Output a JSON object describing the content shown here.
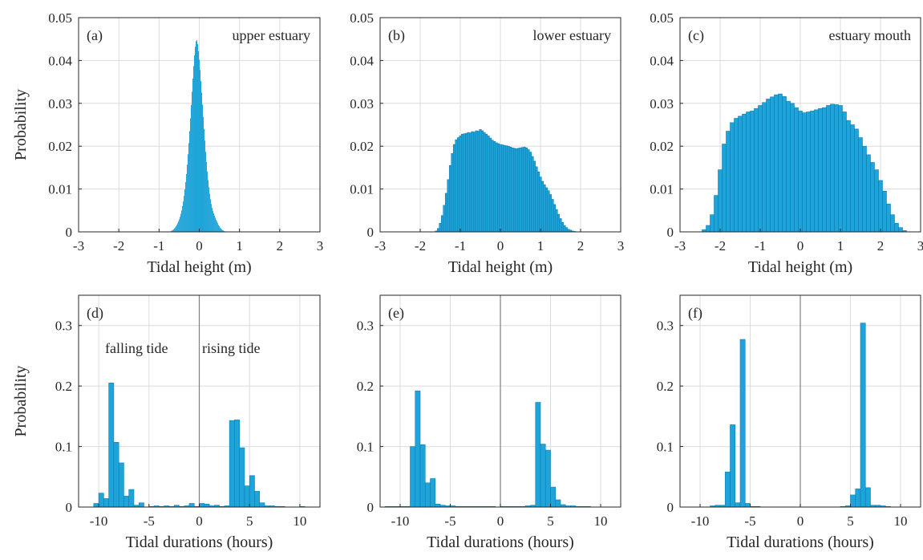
{
  "colors": {
    "bar": "#1ea4d8",
    "edge": "#0d7fb5",
    "grid": "#dcdcdc",
    "axis": "#262626",
    "zero_line": "#808080"
  },
  "chart_data": [
    {
      "type": "bar",
      "panel": "(a)",
      "annotation": "upper estuary",
      "xlabel": "Tidal height (m)",
      "ylabel": "Probability",
      "xlim": [
        -3,
        3
      ],
      "ylim": [
        0,
        0.05
      ],
      "xticks": [
        "-3",
        "-2",
        "-1",
        "0",
        "1",
        "2",
        "3"
      ],
      "yticks": [
        "0",
        "0.01",
        "0.02",
        "0.03",
        "0.04",
        "0.05"
      ],
      "grid": true,
      "binwidth": 0.02,
      "x": [
        -0.7,
        -0.68,
        -0.66,
        -0.64,
        -0.62,
        -0.6,
        -0.58,
        -0.56,
        -0.54,
        -0.52,
        -0.5,
        -0.48,
        -0.46,
        -0.44,
        -0.42,
        -0.4,
        -0.38,
        -0.36,
        -0.34,
        -0.32,
        -0.3,
        -0.28,
        -0.26,
        -0.24,
        -0.22,
        -0.2,
        -0.18,
        -0.16,
        -0.14,
        -0.12,
        -0.1,
        -0.08,
        -0.06,
        -0.04,
        -0.02,
        0,
        0.02,
        0.04,
        0.06,
        0.08,
        0.1,
        0.12,
        0.14,
        0.16,
        0.18,
        0.2,
        0.22,
        0.24,
        0.26,
        0.28,
        0.3,
        0.32,
        0.34,
        0.36,
        0.38,
        0.4,
        0.42,
        0.44,
        0.46,
        0.48,
        0.5,
        0.52,
        0.54,
        0.56,
        0.58,
        0.6,
        0.62,
        0.64,
        0.66,
        0.68,
        0.7
      ],
      "values": [
        0.0002,
        0.0003,
        0.0004,
        0.0006,
        0.0008,
        0.001,
        0.0013,
        0.0016,
        0.002,
        0.0024,
        0.0029,
        0.0035,
        0.0042,
        0.005,
        0.006,
        0.0071,
        0.0084,
        0.0099,
        0.0116,
        0.0135,
        0.0157,
        0.0181,
        0.0207,
        0.0235,
        0.0265,
        0.0296,
        0.0327,
        0.0358,
        0.0387,
        0.0412,
        0.0432,
        0.0445,
        0.0447,
        0.0438,
        0.0422,
        0.0402,
        0.0378,
        0.0352,
        0.0325,
        0.0297,
        0.0268,
        0.024,
        0.0213,
        0.0187,
        0.0163,
        0.0141,
        0.0121,
        0.0104,
        0.0089,
        0.0076,
        0.0065,
        0.0056,
        0.0049,
        0.0043,
        0.0038,
        0.0033,
        0.0028,
        0.0024,
        0.002,
        0.0016,
        0.0013,
        0.001,
        0.0008,
        0.0006,
        0.0004,
        0.0003,
        0.0002,
        0.0001,
        0.0001,
        0.0001,
        0
      ]
    },
    {
      "type": "bar",
      "panel": "(b)",
      "annotation": "lower estuary",
      "xlabel": "Tidal height (m)",
      "ylabel": "",
      "xlim": [
        -3,
        3
      ],
      "ylim": [
        0,
        0.05
      ],
      "xticks": [
        "-3",
        "-2",
        "-1",
        "0",
        "1",
        "2",
        "3"
      ],
      "yticks": [
        "0",
        "0.01",
        "0.02",
        "0.03",
        "0.04",
        "0.05"
      ],
      "grid": true,
      "binwidth": 0.05,
      "x": [
        -1.6,
        -1.55,
        -1.5,
        -1.45,
        -1.4,
        -1.35,
        -1.3,
        -1.25,
        -1.2,
        -1.15,
        -1.1,
        -1.05,
        -1,
        -0.95,
        -0.9,
        -0.85,
        -0.8,
        -0.75,
        -0.7,
        -0.65,
        -0.6,
        -0.55,
        -0.5,
        -0.45,
        -0.4,
        -0.35,
        -0.3,
        -0.25,
        -0.2,
        -0.15,
        -0.1,
        -0.05,
        0,
        0.05,
        0.1,
        0.15,
        0.2,
        0.25,
        0.3,
        0.35,
        0.4,
        0.45,
        0.5,
        0.55,
        0.6,
        0.65,
        0.7,
        0.75,
        0.8,
        0.85,
        0.9,
        0.95,
        1,
        1.05,
        1.1,
        1.15,
        1.2,
        1.25,
        1.3,
        1.35,
        1.4,
        1.45,
        1.5,
        1.55,
        1.6,
        1.65,
        1.7,
        1.75,
        1.8,
        1.85,
        1.9
      ],
      "values": [
        0.0002,
        0.0008,
        0.002,
        0.0038,
        0.0062,
        0.009,
        0.0122,
        0.0155,
        0.0183,
        0.0204,
        0.0215,
        0.022,
        0.0224,
        0.0228,
        0.0229,
        0.023,
        0.0232,
        0.0231,
        0.0234,
        0.0233,
        0.0236,
        0.0235,
        0.0239,
        0.0236,
        0.0232,
        0.0228,
        0.0224,
        0.0219,
        0.0214,
        0.0211,
        0.0208,
        0.0206,
        0.0204,
        0.0203,
        0.0202,
        0.0201,
        0.02,
        0.0198,
        0.0196,
        0.0195,
        0.0194,
        0.0195,
        0.0196,
        0.0197,
        0.0198,
        0.0196,
        0.0192,
        0.0186,
        0.0176,
        0.0165,
        0.0152,
        0.014,
        0.0128,
        0.0118,
        0.011,
        0.0103,
        0.0096,
        0.0087,
        0.0076,
        0.0064,
        0.0052,
        0.0041,
        0.0031,
        0.0022,
        0.0015,
        0.001,
        0.0006,
        0.0004,
        0.0002,
        0.0001,
        0
      ]
    },
    {
      "type": "bar",
      "panel": "(c)",
      "annotation": "estuary mouth",
      "xlabel": "Tidal height (m)",
      "ylabel": "",
      "xlim": [
        -3,
        3
      ],
      "ylim": [
        0,
        0.05
      ],
      "xticks": [
        "-3",
        "-2",
        "-1",
        "0",
        "1",
        "2",
        "3"
      ],
      "yticks": [
        "0",
        "0.01",
        "0.02",
        "0.03",
        "0.04",
        "0.05"
      ],
      "grid": true,
      "binwidth": 0.1,
      "x": [
        -2.4,
        -2.3,
        -2.2,
        -2.1,
        -2,
        -1.9,
        -1.8,
        -1.7,
        -1.6,
        -1.5,
        -1.4,
        -1.3,
        -1.2,
        -1.1,
        -1,
        -0.9,
        -0.8,
        -0.7,
        -0.6,
        -0.5,
        -0.4,
        -0.3,
        -0.2,
        -0.1,
        0,
        0.1,
        0.2,
        0.3,
        0.4,
        0.5,
        0.6,
        0.7,
        0.8,
        0.9,
        1,
        1.1,
        1.2,
        1.3,
        1.4,
        1.5,
        1.6,
        1.7,
        1.8,
        1.9,
        2,
        2.1,
        2.2,
        2.3,
        2.4,
        2.5,
        2.6
      ],
      "values": [
        0.0005,
        0.0015,
        0.004,
        0.0085,
        0.0145,
        0.0205,
        0.0235,
        0.0255,
        0.0265,
        0.027,
        0.0275,
        0.028,
        0.0282,
        0.0288,
        0.0295,
        0.0302,
        0.031,
        0.0315,
        0.032,
        0.0322,
        0.0316,
        0.0305,
        0.03,
        0.029,
        0.0282,
        0.0278,
        0.028,
        0.0282,
        0.0285,
        0.0288,
        0.029,
        0.0295,
        0.0298,
        0.0297,
        0.0295,
        0.028,
        0.026,
        0.025,
        0.024,
        0.022,
        0.02,
        0.018,
        0.0162,
        0.0145,
        0.012,
        0.0095,
        0.0065,
        0.004,
        0.002,
        0.001,
        0.0003
      ]
    },
    {
      "type": "bar",
      "panel": "(d)",
      "annotations": [
        "falling tide",
        "rising tide"
      ],
      "xlabel": "Tidal durations (hours)",
      "ylabel": "Probability",
      "xlim": [
        -12,
        12
      ],
      "ylim": [
        0,
        0.35
      ],
      "xticks": [
        "-10",
        "-5",
        "0",
        "5",
        "10"
      ],
      "yticks": [
        "0",
        "0.1",
        "0.2",
        "0.3"
      ],
      "grid": true,
      "binwidth": 0.5,
      "x": [
        -10.25,
        -9.75,
        -9.25,
        -8.75,
        -8.25,
        -7.75,
        -7.25,
        -6.75,
        -6.25,
        -5.75,
        -5.25,
        -4.75,
        -4.25,
        -3.75,
        -3.25,
        -2.75,
        -2.25,
        -1.75,
        -1.25,
        -0.75,
        -0.25,
        0.25,
        0.75,
        1.25,
        1.75,
        2.25,
        2.75,
        3.25,
        3.75,
        4.25,
        4.75,
        5.25,
        5.75,
        6.25,
        6.75,
        7.25,
        7.75,
        8.25,
        8.75,
        9.25,
        9.75,
        10.25
      ],
      "values": [
        0.006,
        0.023,
        0.014,
        0.205,
        0.107,
        0.073,
        0.018,
        0.029,
        0.003,
        0.007,
        0,
        0.001,
        0.002,
        0.001,
        0.002,
        0.001,
        0.003,
        0.001,
        0.002,
        0.006,
        0.001,
        0.006,
        0.005,
        0.002,
        0.003,
        0.001,
        0.002,
        0.143,
        0.144,
        0.098,
        0.035,
        0.052,
        0.026,
        0.007,
        0.002,
        0.002,
        0.001,
        0.001,
        0,
        0,
        0,
        0.001
      ]
    },
    {
      "type": "bar",
      "panel": "(e)",
      "xlabel": "Tidal durations (hours)",
      "ylabel": "",
      "xlim": [
        -12,
        12
      ],
      "ylim": [
        0,
        0.35
      ],
      "xticks": [
        "-10",
        "-5",
        "0",
        "5",
        "10"
      ],
      "yticks": [
        "0",
        "0.1",
        "0.2",
        "0.3"
      ],
      "grid": true,
      "binwidth": 0.5,
      "x": [
        -11.25,
        -10.75,
        -10.25,
        -9.75,
        -9.25,
        -8.75,
        -8.25,
        -7.75,
        -7.25,
        -6.75,
        -6.25,
        -5.75,
        -5.25,
        -4.75,
        -4.25,
        -3.75,
        -3.25,
        -2.75,
        -2.25,
        -1.75,
        -1.25,
        -0.75,
        -0.25,
        0.25,
        0.75,
        1.25,
        1.75,
        2.25,
        2.75,
        3.25,
        3.75,
        4.25,
        4.75,
        5.25,
        5.75,
        6.25,
        6.75,
        7.25,
        7.75,
        8.25,
        8.75,
        9.25
      ],
      "values": [
        0.001,
        0.001,
        0.001,
        0.001,
        0.001,
        0.1,
        0.192,
        0.103,
        0.04,
        0.047,
        0.005,
        0.003,
        0.002,
        0.002,
        0.001,
        0.001,
        0.001,
        0.001,
        0.001,
        0.001,
        0.001,
        0.001,
        0,
        0.001,
        0.001,
        0.001,
        0.001,
        0.001,
        0.002,
        0.003,
        0.173,
        0.104,
        0.094,
        0.033,
        0.012,
        0.004,
        0.002,
        0.002,
        0.001,
        0.001,
        0.001,
        0
      ]
    },
    {
      "type": "bar",
      "panel": "(f)",
      "xlabel": "Tidal durations (hours)",
      "ylabel": "",
      "xlim": [
        -12,
        12
      ],
      "ylim": [
        0,
        0.35
      ],
      "xticks": [
        "-10",
        "-5",
        "0",
        "5",
        "10"
      ],
      "yticks": [
        "0",
        "0.1",
        "0.2",
        "0.3"
      ],
      "grid": true,
      "binwidth": 0.5,
      "x": [
        -8.75,
        -8.25,
        -7.75,
        -7.25,
        -6.75,
        -6.25,
        -5.75,
        -5.25,
        -4.75,
        -4.25,
        -3.75,
        -3.25,
        -2.75,
        -2.25,
        -1.75,
        -1.25,
        -0.75,
        -0.25,
        0.25,
        0.75,
        1.25,
        1.75,
        2.25,
        2.75,
        3.25,
        3.75,
        4.25,
        4.75,
        5.25,
        5.75,
        6.25,
        6.75,
        7.25,
        7.75,
        8.25,
        8.75
      ],
      "values": [
        0.002,
        0.003,
        0.003,
        0.058,
        0.136,
        0.007,
        0.277,
        0.006,
        0.001,
        0.001,
        0,
        0,
        0,
        0,
        0,
        0,
        0,
        0,
        0,
        0,
        0,
        0,
        0,
        0,
        0,
        0,
        0.001,
        0.002,
        0.02,
        0.03,
        0.304,
        0.032,
        0.003,
        0.003,
        0.002,
        0.001
      ]
    }
  ]
}
